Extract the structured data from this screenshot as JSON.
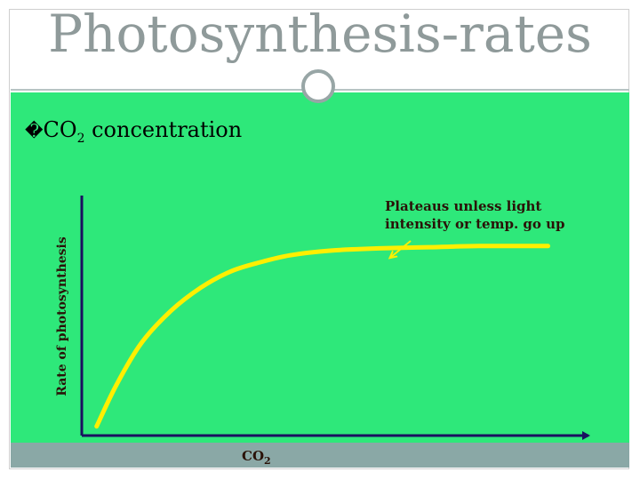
{
  "slide": {
    "title": "Photosynthesis-rates",
    "bullet_glyph": "�",
    "bullet_co": "CO",
    "bullet_sub": "2",
    "bullet_rest": " concentration",
    "annotation_line1": "Plateaus unless light",
    "annotation_line2": "intensity or temp. go up"
  },
  "colors": {
    "panel": "#2ee87a",
    "curve": "#ffef00",
    "axis": "#1a1060",
    "arrow": "#ffef00",
    "footer": "#8aa8a6"
  },
  "chart_data": {
    "type": "line",
    "title": "",
    "xlabel": "CO2",
    "xlabel_main": "CO",
    "xlabel_sub": "2",
    "ylabel": "Rate of photosynthesis",
    "xlim": [
      0,
      10
    ],
    "ylim": [
      0,
      10
    ],
    "series": [
      {
        "values_x": [
          0.3,
          0.7,
          1.2,
          1.8,
          2.4,
          3.0,
          3.6,
          4.2,
          5.0,
          6.0,
          7.0,
          8.0,
          9.0,
          9.4
        ],
        "values_y": [
          0.4,
          2.2,
          4.0,
          5.4,
          6.4,
          7.1,
          7.5,
          7.8,
          8.0,
          8.1,
          8.15,
          8.2,
          8.2,
          8.2
        ]
      }
    ]
  }
}
